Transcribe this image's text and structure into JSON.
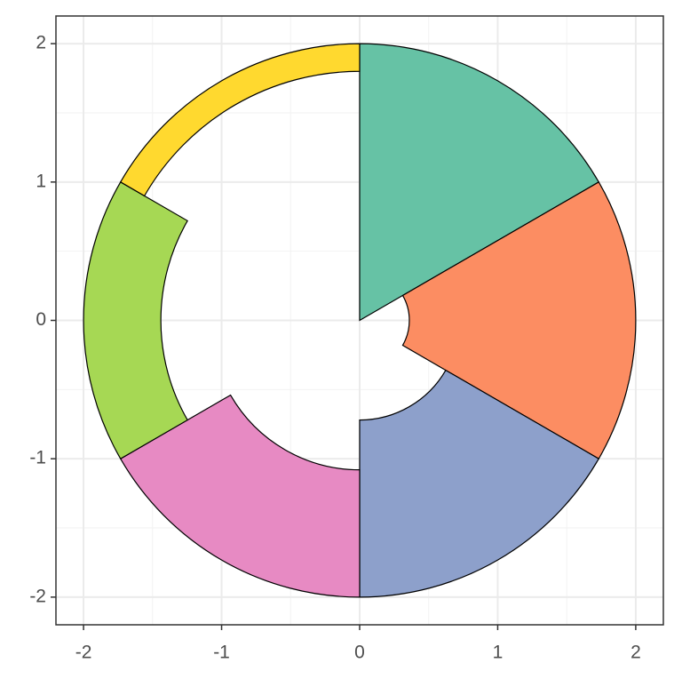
{
  "chart_data": {
    "type": "sectors",
    "sectors": [
      {
        "start": 0,
        "end": 60,
        "inner": 0,
        "outer": 2,
        "color": "#66c2a5"
      },
      {
        "start": 60,
        "end": 120,
        "inner": 0.36,
        "outer": 2,
        "color": "#fc8d62"
      },
      {
        "start": 120,
        "end": 180,
        "inner": 0.72,
        "outer": 2,
        "color": "#8da0cb"
      },
      {
        "start": 180,
        "end": 240,
        "inner": 1.08,
        "outer": 2,
        "color": "#e78ac3"
      },
      {
        "start": 240,
        "end": 300,
        "inner": 1.44,
        "outer": 2,
        "color": "#a6d854"
      },
      {
        "start": 300,
        "end": 360,
        "inner": 1.8,
        "outer": 2,
        "color": "#ffd92f"
      }
    ],
    "xlim": [
      -2.2,
      2.2
    ],
    "ylim": [
      -2.2,
      2.2
    ],
    "xticks": [
      -2,
      -1,
      0,
      1,
      2
    ],
    "yticks": [
      -2,
      -1,
      0,
      1,
      2
    ],
    "grid": true,
    "minor_grid": true
  }
}
